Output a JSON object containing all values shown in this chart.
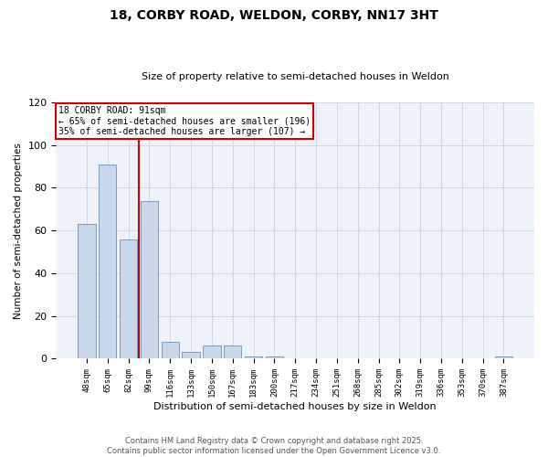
{
  "title_line1": "18, CORBY ROAD, WELDON, CORBY, NN17 3HT",
  "title_line2": "Size of property relative to semi-detached houses in Weldon",
  "xlabel": "Distribution of semi-detached houses by size in Weldon",
  "ylabel": "Number of semi-detached properties",
  "categories": [
    "48sqm",
    "65sqm",
    "82sqm",
    "99sqm",
    "116sqm",
    "133sqm",
    "150sqm",
    "167sqm",
    "183sqm",
    "200sqm",
    "217sqm",
    "234sqm",
    "251sqm",
    "268sqm",
    "285sqm",
    "302sqm",
    "319sqm",
    "336sqm",
    "353sqm",
    "370sqm",
    "387sqm"
  ],
  "values": [
    63,
    91,
    56,
    74,
    8,
    3,
    6,
    6,
    1,
    1,
    0,
    0,
    0,
    0,
    0,
    0,
    0,
    0,
    0,
    0,
    1
  ],
  "bar_color": "#c8d8ea",
  "bar_edge_color": "#7090b0",
  "grid_color": "#d0d8e8",
  "bg_color": "#eef2fb",
  "vline_x": 2.5,
  "vline_color": "#cc0000",
  "annotation_title": "18 CORBY ROAD: 91sqm",
  "annotation_line2": "← 65% of semi-detached houses are smaller (196)",
  "annotation_line3": "35% of semi-detached houses are larger (107) →",
  "annotation_box_color": "#cc0000",
  "footer_line1": "Contains HM Land Registry data © Crown copyright and database right 2025.",
  "footer_line2": "Contains public sector information licensed under the Open Government Licence v3.0.",
  "ylim": [
    0,
    120
  ],
  "yticks": [
    0,
    20,
    40,
    60,
    80,
    100,
    120
  ]
}
